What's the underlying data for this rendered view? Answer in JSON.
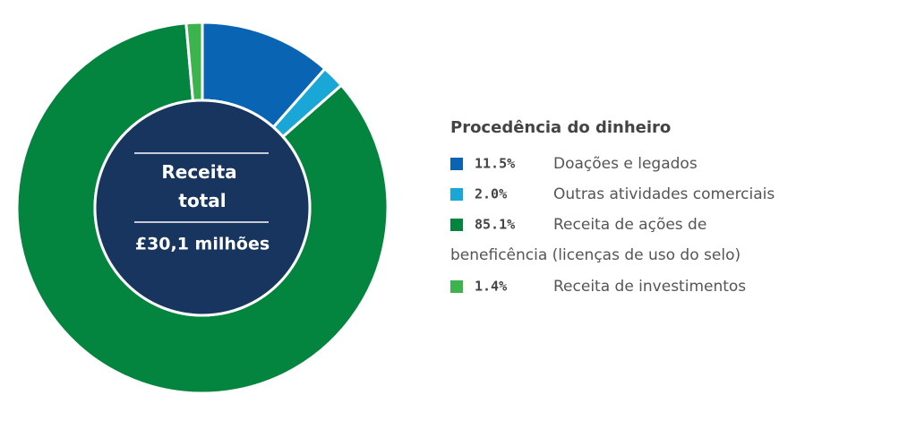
{
  "chart_data": {
    "type": "donut",
    "title": "Procedência do dinheiro",
    "center_label": "Receita total",
    "center_value": "£30,1 milhões",
    "categories": [
      "Doações e legados",
      "Outras atividades comerciais",
      "Receita de ações de beneficência (licenças de uso do selo)",
      "Receita de investimentos"
    ],
    "values": [
      11.5,
      2.0,
      85.1,
      1.4
    ],
    "value_labels": [
      "11.5%",
      "2.0%",
      "85.1%",
      "1.4%"
    ],
    "colors": [
      "#0a64b4",
      "#1aa7d8",
      "#04853f",
      "#3db34d"
    ],
    "center_color": "#17355f"
  }
}
